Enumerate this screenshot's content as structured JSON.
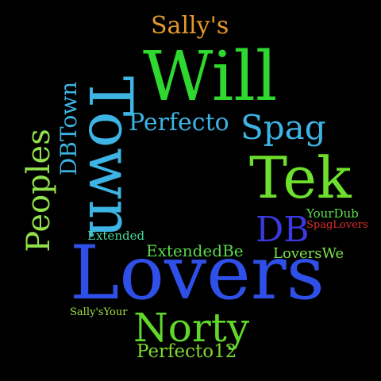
{
  "words": [
    {
      "text": "Sally's",
      "color": "#e39a2c",
      "rotate": false
    },
    {
      "text": "Will",
      "color": "#2ed82e",
      "rotate": false
    },
    {
      "text": "Town",
      "color": "#3db4e4",
      "rotate": true
    },
    {
      "text": "DBTown",
      "color": "#3db4e4",
      "rotate": true
    },
    {
      "text": "Perfecto",
      "color": "#3db4e4",
      "rotate": false
    },
    {
      "text": "Spag",
      "color": "#3db4e4",
      "rotate": false
    },
    {
      "text": "Peoples",
      "color": "#8fe04a",
      "rotate": true
    },
    {
      "text": "Tek",
      "color": "#6ee02c",
      "rotate": false
    },
    {
      "text": "YourDub",
      "color": "#5de04a",
      "rotate": false
    },
    {
      "text": "SpagLovers",
      "color": "#e02c2c",
      "rotate": false
    },
    {
      "text": "DB",
      "color": "#3a3ae0",
      "rotate": false
    },
    {
      "text": "Extended",
      "color": "#4ad8a0",
      "rotate": false
    },
    {
      "text": "ExtendedBe",
      "color": "#5ad84a",
      "rotate": false
    },
    {
      "text": "LoversWe",
      "color": "#7ee04a",
      "rotate": false
    },
    {
      "text": "Lovers",
      "color": "#2f50e8",
      "rotate": false
    },
    {
      "text": "Sally'sYour",
      "color": "#a0e040",
      "rotate": false
    },
    {
      "text": "Norty",
      "color": "#60d82a",
      "rotate": false
    },
    {
      "text": "Perfecto12",
      "color": "#7ed830",
      "rotate": false
    }
  ]
}
